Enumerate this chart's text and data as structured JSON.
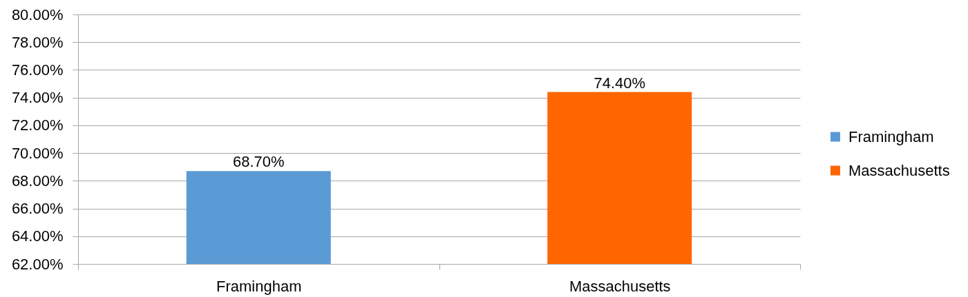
{
  "chart_data": {
    "type": "bar",
    "categories": [
      "Framingham",
      "Massachusetts"
    ],
    "series": [
      {
        "name": "Framingham",
        "color": "#5b9bd5",
        "values": [
          68.7,
          null
        ],
        "value_labels": [
          "68.70%",
          null
        ]
      },
      {
        "name": "Massachusetts",
        "color": "#ff6600",
        "values": [
          null,
          74.4
        ],
        "value_labels": [
          null,
          "74.40%"
        ]
      }
    ],
    "ylim": [
      62,
      80
    ],
    "yticks": [
      {
        "value": 62,
        "label": "62.00%"
      },
      {
        "value": 64,
        "label": "64.00%"
      },
      {
        "value": 66,
        "label": "66.00%"
      },
      {
        "value": 68,
        "label": "68.00%"
      },
      {
        "value": 70,
        "label": "70.00%"
      },
      {
        "value": 72,
        "label": "72.00%"
      },
      {
        "value": 74,
        "label": "74.00%"
      },
      {
        "value": 76,
        "label": "76.00%"
      },
      {
        "value": 78,
        "label": "78.00%"
      },
      {
        "value": 80,
        "label": "80.00%"
      }
    ],
    "grid": "y",
    "legend": "right"
  }
}
